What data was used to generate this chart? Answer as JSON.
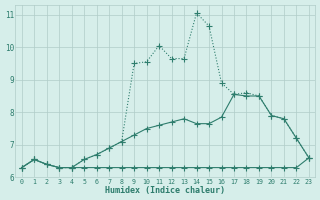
{
  "xlabel": "Humidex (Indice chaleur)",
  "x_values": [
    0,
    1,
    2,
    3,
    4,
    5,
    6,
    7,
    8,
    9,
    10,
    11,
    12,
    13,
    14,
    15,
    16,
    17,
    18,
    19,
    20,
    21,
    22,
    23
  ],
  "line_flat": [
    6.3,
    6.55,
    6.4,
    6.3,
    6.3,
    6.3,
    6.3,
    6.3,
    6.3,
    6.3,
    6.3,
    6.3,
    6.3,
    6.3,
    6.3,
    6.3,
    6.3,
    6.3,
    6.3,
    6.3,
    6.3,
    6.3,
    6.3,
    6.6
  ],
  "line_mid": [
    6.3,
    6.55,
    6.4,
    6.3,
    6.3,
    6.55,
    6.7,
    6.9,
    7.1,
    7.3,
    7.5,
    7.6,
    7.7,
    7.8,
    7.65,
    7.65,
    7.85,
    8.55,
    8.5,
    8.5,
    7.9,
    7.8,
    7.2,
    6.6
  ],
  "line_peak": [
    6.3,
    6.55,
    6.4,
    6.3,
    6.3,
    6.55,
    6.7,
    6.9,
    7.1,
    9.5,
    9.55,
    10.05,
    9.65,
    9.65,
    11.05,
    10.65,
    8.9,
    8.55,
    8.6,
    8.5,
    7.9,
    7.8,
    7.2,
    6.6
  ],
  "line_color": "#2e7d6d",
  "bg_color": "#d6eeea",
  "grid_color": "#b0ccc8",
  "xlim": [
    -0.5,
    23.5
  ],
  "ylim": [
    6.0,
    11.3
  ],
  "yticks": [
    6,
    7,
    8,
    9,
    10,
    11
  ],
  "xticks": [
    0,
    1,
    2,
    3,
    4,
    5,
    6,
    7,
    8,
    9,
    10,
    11,
    12,
    13,
    14,
    15,
    16,
    17,
    18,
    19,
    20,
    21,
    22,
    23
  ]
}
